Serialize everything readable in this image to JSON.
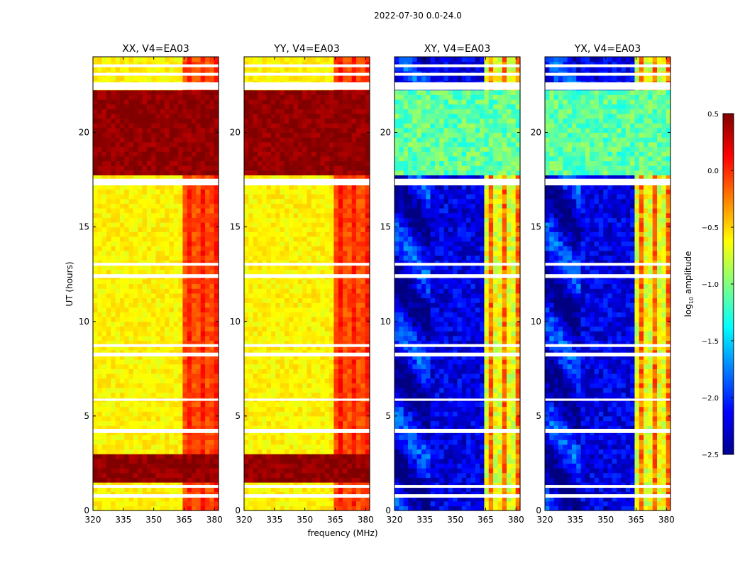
{
  "suptitle": "2022-07-30 0.0-24.0",
  "colormap": "jet",
  "chart_data": {
    "type": "heatmap",
    "shared_x": {
      "label": "frequency (MHz)",
      "range": [
        320,
        382
      ],
      "ticks": [
        320,
        335,
        350,
        365,
        380
      ],
      "tick_labels": [
        "320",
        "335",
        "350",
        "365",
        "380"
      ]
    },
    "shared_y": {
      "label": "UT (hours)",
      "range": [
        0,
        24
      ],
      "ticks": [
        0,
        5,
        10,
        15,
        20
      ],
      "tick_labels": [
        "0",
        "5",
        "10",
        "15",
        "20"
      ]
    },
    "colorbar": {
      "label_main": "log",
      "label_sub": "10",
      "label_rest": " amplitude",
      "range": [
        -2.5,
        0.5
      ],
      "ticks": [
        0.5,
        0.0,
        -0.5,
        -1.0,
        -1.5,
        -2.0,
        -2.5
      ],
      "tick_labels": [
        "0.5",
        "0.0",
        "−0.5",
        "−1.0",
        "−1.5",
        "−2.0",
        "−2.5"
      ]
    },
    "panels": [
      {
        "title": "XX, V4=EA03",
        "kind": "auto"
      },
      {
        "title": "YY, V4=EA03",
        "kind": "auto"
      },
      {
        "title": "XY, V4=EA03",
        "kind": "cross"
      },
      {
        "title": "YX, V4=EA03",
        "kind": "cross"
      }
    ],
    "flagged_gaps_hours": [
      [
        0.68,
        0.86
      ],
      [
        1.2,
        1.35
      ],
      [
        4.1,
        4.32
      ],
      [
        5.8,
        5.92
      ],
      [
        8.15,
        8.35
      ],
      [
        8.65,
        8.8
      ],
      [
        12.3,
        12.5
      ],
      [
        12.95,
        13.1
      ],
      [
        17.2,
        17.55
      ],
      [
        22.25,
        22.65
      ],
      [
        23.0,
        23.15
      ],
      [
        23.45,
        23.6
      ]
    ],
    "rfi_band_mhz": [
      363.5,
      381.0
    ],
    "auto_levels": {
      "typical": -0.6,
      "rfi_band": -0.1,
      "high_period_hours": [
        [
          1.5,
          3.0
        ],
        [
          17.7,
          22.2
        ]
      ],
      "high_period_level": 0.45
    },
    "cross_levels": {
      "typical": -2.2,
      "rfi_band": -0.7,
      "elevated_period_hours": [
        [
          17.7,
          22.2
        ]
      ],
      "elevated_period_level": -1.1
    }
  }
}
